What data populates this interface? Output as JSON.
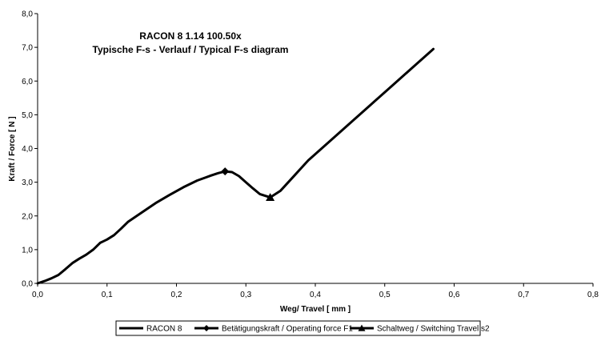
{
  "chart_data": {
    "type": "line",
    "title": "RACON 8  1.14 100.50x",
    "subtitle": "Typische F-s - Verlauf / Typical F-s diagram",
    "xlabel": "Weg/ Travel [ mm ]",
    "ylabel": "Kraft / Force [ N ]",
    "xlim": [
      0,
      0.8
    ],
    "ylim": [
      0,
      8
    ],
    "x_ticks": [
      "0,0",
      "0,1",
      "0,2",
      "0,3",
      "0,4",
      "0,5",
      "0,6",
      "0,7",
      "0,8"
    ],
    "y_ticks": [
      "0,0",
      "1,0",
      "2,0",
      "3,0",
      "4,0",
      "5,0",
      "6,0",
      "7,0",
      "8,0"
    ],
    "grid": false,
    "legend_position": "bottom",
    "series": [
      {
        "name": "RACON 8",
        "color": "#000000",
        "points": [
          [
            0.0,
            0.0
          ],
          [
            0.01,
            0.07
          ],
          [
            0.02,
            0.15
          ],
          [
            0.03,
            0.25
          ],
          [
            0.04,
            0.42
          ],
          [
            0.05,
            0.6
          ],
          [
            0.06,
            0.73
          ],
          [
            0.07,
            0.85
          ],
          [
            0.08,
            1.0
          ],
          [
            0.09,
            1.2
          ],
          [
            0.1,
            1.3
          ],
          [
            0.11,
            1.43
          ],
          [
            0.12,
            1.62
          ],
          [
            0.13,
            1.82
          ],
          [
            0.15,
            2.1
          ],
          [
            0.17,
            2.38
          ],
          [
            0.19,
            2.62
          ],
          [
            0.21,
            2.85
          ],
          [
            0.23,
            3.05
          ],
          [
            0.25,
            3.2
          ],
          [
            0.26,
            3.27
          ],
          [
            0.27,
            3.32
          ],
          [
            0.28,
            3.3
          ],
          [
            0.29,
            3.18
          ],
          [
            0.3,
            3.0
          ],
          [
            0.31,
            2.82
          ],
          [
            0.32,
            2.65
          ],
          [
            0.335,
            2.55
          ],
          [
            0.35,
            2.75
          ],
          [
            0.37,
            3.2
          ],
          [
            0.39,
            3.65
          ],
          [
            0.42,
            4.2
          ],
          [
            0.45,
            4.75
          ],
          [
            0.48,
            5.3
          ],
          [
            0.51,
            5.85
          ],
          [
            0.54,
            6.4
          ],
          [
            0.57,
            6.95
          ]
        ]
      },
      {
        "name": "Betätigungskraft / Operating force F1",
        "marker": "diamond",
        "points": [
          [
            0.27,
            3.32
          ]
        ]
      },
      {
        "name": "Schaltweg / Switching Travel s2",
        "marker": "triangle",
        "points": [
          [
            0.335,
            2.55
          ]
        ]
      }
    ]
  }
}
